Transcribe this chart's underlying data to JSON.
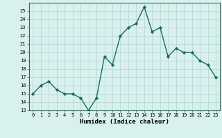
{
  "x": [
    0,
    1,
    2,
    3,
    4,
    5,
    6,
    7,
    8,
    9,
    10,
    11,
    12,
    13,
    14,
    15,
    16,
    17,
    18,
    19,
    20,
    21,
    22,
    23
  ],
  "y": [
    15,
    16,
    16.5,
    15.5,
    15,
    15,
    14.5,
    13,
    14.5,
    19.5,
    18.5,
    22,
    23,
    23.5,
    25.5,
    22.5,
    23,
    19.5,
    20.5,
    20,
    20,
    19,
    18.5,
    17
  ],
  "title": "",
  "xlabel": "Humidex (Indice chaleur)",
  "ylabel": "",
  "line_color": "#1a6b5a",
  "bg_color": "#d8f0ee",
  "grid_color": "#b8d8d5",
  "ylim": [
    13,
    26
  ],
  "xlim": [
    -0.5,
    23.5
  ],
  "yticks": [
    13,
    14,
    15,
    16,
    17,
    18,
    19,
    20,
    21,
    22,
    23,
    24,
    25
  ],
  "xticks": [
    0,
    1,
    2,
    3,
    4,
    5,
    6,
    7,
    8,
    9,
    10,
    11,
    12,
    13,
    14,
    15,
    16,
    17,
    18,
    19,
    20,
    21,
    22,
    23
  ],
  "xtick_labels": [
    "0",
    "1",
    "2",
    "3",
    "4",
    "5",
    "6",
    "7",
    "8",
    "9",
    "10",
    "11",
    "12",
    "13",
    "14",
    "15",
    "16",
    "17",
    "18",
    "19",
    "20",
    "21",
    "22",
    "23"
  ],
  "marker": "D",
  "marker_size": 2.2,
  "line_width": 1.0
}
